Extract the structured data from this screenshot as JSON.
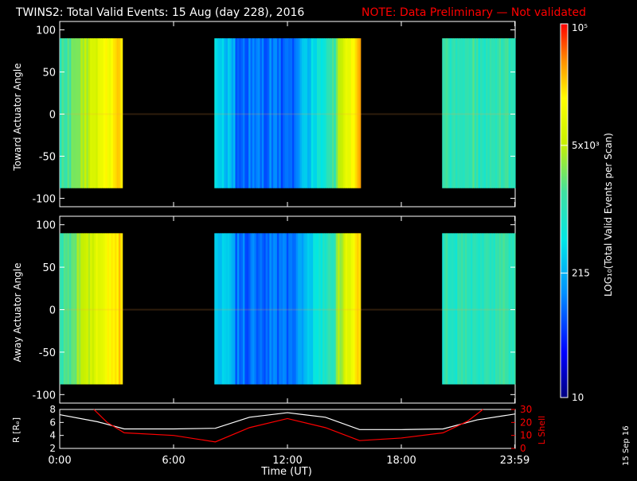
{
  "header": {
    "title": "TWINS2: Total Valid Events: 15 Aug (day 228), 2016",
    "note": "NOTE: Data Preliminary — Not validated",
    "title_color": "#ffffff",
    "note_color": "#ff0000"
  },
  "stamp": "15 Sep 16",
  "chart_data": [
    {
      "type": "heatmap",
      "id": "toward",
      "ylabel": "Toward Actuator Angle",
      "ylim": [
        -110,
        110
      ],
      "yticks": [
        "100",
        "50",
        "0",
        "-50",
        "-100"
      ],
      "ytick_values": [
        100,
        50,
        0,
        -50,
        -100
      ],
      "angle_range": [
        -88,
        90
      ],
      "time_blocks_hours": [
        [
          0,
          3.35
        ],
        [
          8.15,
          15.85
        ],
        [
          20.15,
          24
        ]
      ],
      "colorscale": "log10",
      "coverage_note": "data gaps shown as black"
    },
    {
      "type": "heatmap",
      "id": "away",
      "ylabel": "Away Actuator Angle",
      "ylim": [
        -110,
        110
      ],
      "yticks": [
        "100",
        "50",
        "0",
        "-50",
        "-100"
      ],
      "ytick_values": [
        100,
        50,
        0,
        -50,
        -100
      ],
      "angle_range": [
        -88,
        90
      ],
      "time_blocks_hours": [
        [
          0,
          3.35
        ],
        [
          8.15,
          15.85
        ],
        [
          20.15,
          24
        ]
      ],
      "colorscale": "log10"
    },
    {
      "type": "line",
      "id": "ephemeris",
      "ylabel": "R [Rₑ]",
      "ylabel_right": "L Shell",
      "ylim_left": [
        2,
        8
      ],
      "ylim_right": [
        0,
        30
      ],
      "yticks_left": [
        "8",
        "6",
        "4",
        "2"
      ],
      "yticks_right": [
        "30",
        "20",
        "10",
        "0"
      ],
      "series": [
        {
          "name": "R [Rₑ]",
          "color": "#ffffff",
          "x": [
            0,
            2,
            3.4,
            6,
            8.2,
            10,
            12,
            14,
            15.8,
            18,
            20.2,
            22,
            24
          ],
          "y": [
            7.2,
            6.1,
            5.0,
            5.0,
            5.1,
            6.8,
            7.5,
            6.8,
            4.9,
            4.9,
            5.0,
            6.4,
            7.3
          ]
        },
        {
          "name": "L Shell",
          "color": "#ff0000",
          "x": [
            1.8,
            2.5,
            3.4,
            6,
            8.2,
            10,
            12,
            14,
            15.8,
            18,
            20.2,
            21.5,
            22.3
          ],
          "y": [
            30,
            20,
            12,
            10,
            5,
            16,
            23,
            16,
            6,
            8,
            12,
            21,
            30
          ]
        }
      ],
      "xlabel": "Time (UT)",
      "xlim": [
        0,
        24
      ],
      "xticks": [
        "0:00",
        "6:00",
        "12:00",
        "18:00",
        "23:59"
      ],
      "xtick_values": [
        0,
        6,
        12,
        18,
        23.98
      ]
    }
  ],
  "colorbar": {
    "label": "LOG₁₀(Total Valid Events per Scan)",
    "ticks": [
      "10",
      "215",
      "5x10³",
      "10⁵"
    ],
    "tick_values": [
      10,
      215,
      5000,
      100000
    ]
  }
}
